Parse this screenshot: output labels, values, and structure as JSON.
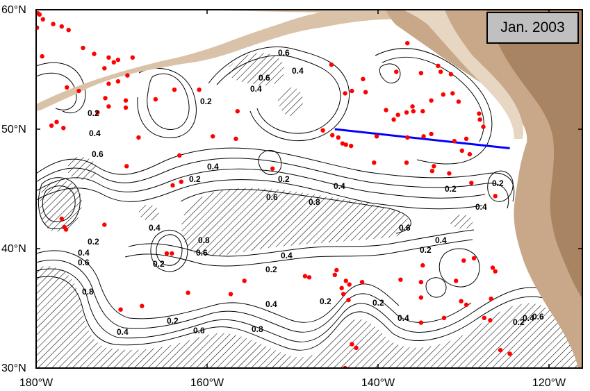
{
  "map": {
    "title": "Jan. 2003",
    "lon_labels": [
      "180°W",
      "160°W",
      "140°W",
      "120°W"
    ],
    "lat_labels": [
      "60°N",
      "50°N",
      "40°N",
      "30°N"
    ],
    "lon_range": [
      -180,
      -116
    ],
    "lat_range": [
      30,
      60
    ],
    "contour_labels": [
      "0.2",
      "0.4",
      "0.6",
      "0.8"
    ],
    "colors": {
      "points": "#ff0000",
      "section_line": "#0000ff",
      "land": "#c8a888",
      "land_dark": "#a98462",
      "contour": "#000000"
    },
    "section_line": [
      [
        -145.0,
        50.0
      ],
      [
        -124.5,
        48.4
      ]
    ],
    "points": [
      [
        -179.8,
        59.7
      ],
      [
        -179.6,
        59.6
      ],
      [
        -179.2,
        59.2
      ],
      [
        -178.0,
        58.8
      ],
      [
        -177.0,
        58.6
      ],
      [
        -179.9,
        58.5
      ],
      [
        -176.2,
        58.3
      ],
      [
        -174.5,
        56.8
      ],
      [
        -173.2,
        56.3
      ],
      [
        -179.3,
        56.1
      ],
      [
        -171.5,
        56.0
      ],
      [
        -170.4,
        55.8
      ],
      [
        -170.9,
        55.6
      ],
      [
        -168.7,
        56.0
      ],
      [
        -172.0,
        55.1
      ],
      [
        -169.3,
        54.5
      ],
      [
        -170.4,
        54.0
      ],
      [
        -171.5,
        53.8
      ],
      [
        -176.4,
        53.5
      ],
      [
        -175.0,
        53.2
      ],
      [
        -171.9,
        52.6
      ],
      [
        -169.5,
        52.4
      ],
      [
        -166.0,
        52.5
      ],
      [
        -171.5,
        51.9
      ],
      [
        -169.5,
        51.8
      ],
      [
        -172.8,
        51.4
      ],
      [
        -177.6,
        50.6
      ],
      [
        -178.2,
        50.3
      ],
      [
        -176.8,
        50.1
      ],
      [
        -168.0,
        49.3
      ],
      [
        -163.8,
        53.3
      ],
      [
        -160.9,
        53.3
      ],
      [
        -156.4,
        51.5
      ],
      [
        -159.3,
        49.4
      ],
      [
        -156.6,
        49.2
      ],
      [
        -163.2,
        47.8
      ],
      [
        -169.4,
        46.9
      ],
      [
        -163.0,
        45.6
      ],
      [
        -164.0,
        45.3
      ],
      [
        -152.3,
        46.7
      ],
      [
        -145.4,
        55.4
      ],
      [
        -141.7,
        54.2
      ],
      [
        -141.4,
        53.1
      ],
      [
        -143.0,
        53.2
      ],
      [
        -143.8,
        53.0
      ],
      [
        -136.5,
        57.2
      ],
      [
        -137.8,
        54.8
      ],
      [
        -134.9,
        54.7
      ],
      [
        -132.9,
        55.3
      ],
      [
        -132.6,
        54.8
      ],
      [
        -131.4,
        54.6
      ],
      [
        -131.2,
        53.0
      ],
      [
        -132.3,
        52.9
      ],
      [
        -130.5,
        52.3
      ],
      [
        -133.7,
        52.4
      ],
      [
        -135.9,
        51.9
      ],
      [
        -134.7,
        51.5
      ],
      [
        -135.8,
        51.5
      ],
      [
        -136.6,
        51.4
      ],
      [
        -137.6,
        51.2
      ],
      [
        -138.1,
        50.8
      ],
      [
        -139.0,
        51.6
      ],
      [
        -128.1,
        51.3
      ],
      [
        -128.0,
        50.8
      ],
      [
        -127.6,
        50.2
      ],
      [
        -146.4,
        49.9
      ],
      [
        -145.3,
        49.5
      ],
      [
        -144.6,
        49.3
      ],
      [
        -144.1,
        48.8
      ],
      [
        -143.7,
        48.7
      ],
      [
        -143.1,
        48.6
      ],
      [
        -140.1,
        49.4
      ],
      [
        -136.5,
        49.3
      ],
      [
        -134.6,
        49.4
      ],
      [
        -133.7,
        49.6
      ],
      [
        -129.6,
        49.2
      ],
      [
        -131.0,
        49.0
      ],
      [
        -130.1,
        48.2
      ],
      [
        -129.2,
        47.9
      ],
      [
        -140.4,
        47.2
      ],
      [
        -136.6,
        47.2
      ],
      [
        -133.4,
        46.9
      ],
      [
        -133.6,
        46.5
      ],
      [
        -131.6,
        46.3
      ],
      [
        -129.0,
        45.5
      ],
      [
        -126.2,
        44.4
      ],
      [
        -177.0,
        42.5
      ],
      [
        -176.7,
        41.8
      ],
      [
        -176.5,
        41.6
      ],
      [
        -172.0,
        42.0
      ],
      [
        -164.7,
        39.6
      ],
      [
        -164.1,
        39.6
      ],
      [
        -129.9,
        39.0
      ],
      [
        -128.7,
        39.2
      ],
      [
        -134.7,
        38.6
      ],
      [
        -144.8,
        38.2
      ],
      [
        -145.0,
        37.8
      ],
      [
        -143.7,
        37.3
      ],
      [
        -141.8,
        37.2
      ],
      [
        -143.3,
        37.0
      ],
      [
        -137.3,
        37.4
      ],
      [
        -134.9,
        37.2
      ],
      [
        -130.8,
        37.3
      ],
      [
        -126.5,
        38.4
      ],
      [
        -126.2,
        38.1
      ],
      [
        -155.6,
        37.3
      ],
      [
        -148.5,
        37.7
      ],
      [
        -148.0,
        37.6
      ],
      [
        -144.2,
        36.7
      ],
      [
        -144.0,
        36.2
      ],
      [
        -143.4,
        35.7
      ],
      [
        -134.9,
        35.9
      ],
      [
        -130.2,
        35.6
      ],
      [
        -129.6,
        35.3
      ],
      [
        -126.7,
        35.8
      ],
      [
        -157.2,
        36.2
      ],
      [
        -162.2,
        36.3
      ],
      [
        -167.6,
        35.2
      ],
      [
        -170.1,
        34.9
      ],
      [
        -132.2,
        34.2
      ],
      [
        -127.5,
        34.2
      ],
      [
        -126.8,
        34.0
      ],
      [
        -134.9,
        33.8
      ],
      [
        -142.5,
        31.7
      ],
      [
        -143.0,
        32.0
      ],
      [
        -125.6,
        31.5
      ],
      [
        -124.5,
        31.2
      ],
      [
        -143.8,
        30.0
      ]
    ]
  }
}
